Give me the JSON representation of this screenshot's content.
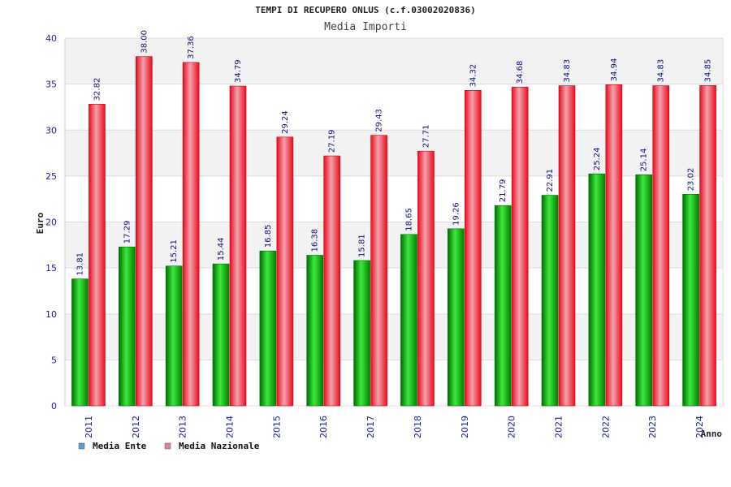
{
  "chart_data": {
    "type": "bar",
    "title": "TEMPI DI RECUPERO ONLUS (c.f.03002020836)",
    "subtitle": "Media Importi",
    "xlabel": "Anno",
    "ylabel": "Euro",
    "ylim": [
      0,
      40
    ],
    "yticks": [
      "0",
      "5",
      "10",
      "15",
      "20",
      "25",
      "30",
      "35",
      "40"
    ],
    "grid": true,
    "legend_position": "bottom-left",
    "categories": [
      "2011",
      "2012",
      "2013",
      "2014",
      "2015",
      "2016",
      "2017",
      "2018",
      "2019",
      "2020",
      "2021",
      "2022",
      "2023",
      "2024"
    ],
    "series": [
      {
        "name": "Media Ente",
        "legend_color": "#5b9bd5",
        "values": [
          13.81,
          17.29,
          15.21,
          15.44,
          16.85,
          16.38,
          15.81,
          18.65,
          19.26,
          21.79,
          22.91,
          25.24,
          25.14,
          23.02
        ],
        "labels": [
          "13.81",
          "17.29",
          "15.21",
          "15.44",
          "16.85",
          "16.38",
          "15.81",
          "18.65",
          "19.26",
          "21.79",
          "22.91",
          "25.24",
          "25.14",
          "23.02"
        ]
      },
      {
        "name": "Media Nazionale",
        "legend_color": "#e07fa8",
        "values": [
          32.82,
          38.0,
          37.36,
          34.79,
          29.24,
          27.19,
          29.43,
          27.71,
          34.32,
          34.68,
          34.83,
          34.94,
          34.83,
          34.85
        ],
        "labels": [
          "32.82",
          "38.00",
          "37.36",
          "34.79",
          "29.24",
          "27.19",
          "29.43",
          "27.71",
          "34.32",
          "34.68",
          "34.83",
          "34.94",
          "34.83",
          "34.85"
        ]
      }
    ]
  },
  "colors": {
    "band": "#f2f2f2",
    "grid": "#dddddd",
    "axis_text": "#1a1aa6",
    "label_text": "#101080"
  }
}
